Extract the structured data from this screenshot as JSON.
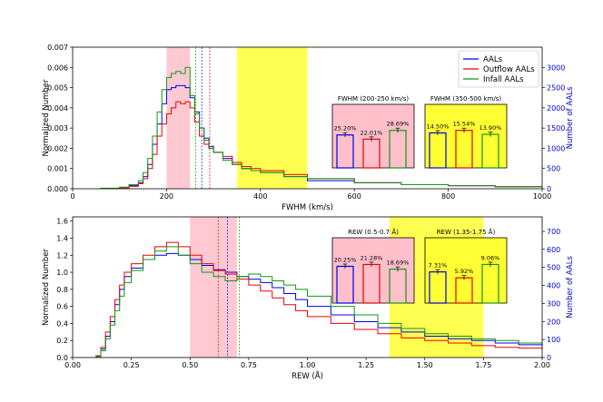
{
  "chart_data": [
    {
      "type": "step-histogram",
      "xlabel": "FWHM (km/s)",
      "ylabel": "Normalized Number",
      "ylabel_right": "Number of AALs",
      "xlim": [
        0,
        1000
      ],
      "ylim": [
        0,
        0.007
      ],
      "ylim_right": [
        0,
        3500
      ],
      "xticks": [
        "0",
        "200",
        "400",
        "600",
        "800",
        "1000"
      ],
      "yticks": [
        "0.000",
        "0.001",
        "0.002",
        "0.003",
        "0.004",
        "0.005",
        "0.006",
        "0.007"
      ],
      "yticks_right": [
        "0",
        "500",
        "1000",
        "1500",
        "2000",
        "2500",
        "3000"
      ],
      "xtick_values": [
        0,
        200,
        400,
        600,
        800,
        1000
      ],
      "ytick_values": [
        0,
        0.001,
        0.002,
        0.003,
        0.004,
        0.005,
        0.006,
        0.007
      ],
      "ytick_right_values": [
        0,
        500,
        1000,
        1500,
        2000,
        2500,
        3000
      ],
      "shaded_regions": [
        {
          "x0": 200,
          "x1": 250,
          "color": "#ffc0cb"
        },
        {
          "x0": 350,
          "x1": 500,
          "color": "#ffff33"
        }
      ],
      "vlines": [
        {
          "x": 262,
          "color": "#22aa22"
        },
        {
          "x": 275,
          "color": "#2222dd"
        },
        {
          "x": 292,
          "color": "#dd2222"
        }
      ],
      "series": [
        {
          "name": "AALs",
          "color": "#0000ee",
          "x": [
            60,
            100,
            120,
            140,
            150,
            160,
            170,
            180,
            190,
            200,
            210,
            220,
            230,
            240,
            250,
            260,
            270,
            280,
            290,
            300,
            320,
            340,
            360,
            380,
            400,
            450,
            500,
            600,
            700,
            800,
            900,
            1000
          ],
          "values": [
            2e-05,
            5e-05,
            0.00015,
            0.0003,
            0.0006,
            0.0012,
            0.0022,
            0.0032,
            0.0042,
            0.0049,
            0.005,
            0.0051,
            0.0051,
            0.005,
            0.0045,
            0.0038,
            0.003,
            0.0025,
            0.0021,
            0.0018,
            0.0015,
            0.0012,
            0.001,
            0.0009,
            0.0008,
            0.0006,
            0.0004,
            0.0003,
            0.0002,
            0.00015,
            0.0001,
            0.0001
          ]
        },
        {
          "name": "Outflow AALs",
          "color": "#ee0000",
          "x": [
            60,
            100,
            120,
            140,
            150,
            160,
            170,
            180,
            190,
            200,
            210,
            220,
            230,
            240,
            250,
            260,
            270,
            280,
            290,
            300,
            320,
            340,
            360,
            380,
            400,
            450,
            500,
            600,
            700,
            800,
            900,
            1000
          ],
          "values": [
            2e-05,
            4e-05,
            0.00012,
            0.00025,
            0.0005,
            0.001,
            0.0017,
            0.0026,
            0.0032,
            0.0037,
            0.004,
            0.0043,
            0.0042,
            0.0043,
            0.004,
            0.0033,
            0.0026,
            0.0022,
            0.002,
            0.0018,
            0.0016,
            0.0013,
            0.0011,
            0.001,
            0.0009,
            0.0007,
            0.0005,
            0.0003,
            0.0002,
            0.00015,
            0.0001,
            0.0001
          ]
        },
        {
          "name": "Infall AALs",
          "color": "#119911",
          "x": [
            60,
            100,
            120,
            140,
            150,
            160,
            170,
            180,
            190,
            200,
            210,
            220,
            230,
            240,
            250,
            260,
            270,
            280,
            290,
            300,
            320,
            340,
            360,
            380,
            400,
            450,
            500,
            600,
            700,
            800,
            900,
            1000
          ],
          "values": [
            3e-05,
            8e-05,
            0.0002,
            0.0004,
            0.0008,
            0.0015,
            0.0026,
            0.0038,
            0.0049,
            0.0055,
            0.0057,
            0.0058,
            0.0057,
            0.006,
            0.0046,
            0.0037,
            0.003,
            0.0024,
            0.002,
            0.0018,
            0.0014,
            0.0012,
            0.001,
            0.0009,
            0.0008,
            0.0006,
            0.0005,
            0.0003,
            0.0002,
            0.00015,
            0.0001,
            0.0001
          ]
        }
      ],
      "legend": {
        "entries": [
          "AALs",
          "Outflow AALs",
          "Infall AALs"
        ],
        "position": "top-right"
      },
      "insets": [
        {
          "title": "FWHM (200-250 km/s)",
          "background": "#ffc0cb",
          "labels": [
            "25.20%",
            "22.01%",
            "28.69%"
          ],
          "values": [
            25.2,
            22.01,
            28.69
          ]
        },
        {
          "title": "FWHM (350-500 km/s)",
          "background": "#ffff33",
          "labels": [
            "14.50%",
            "15.54%",
            "13.90%"
          ],
          "values": [
            14.5,
            15.54,
            13.9
          ]
        }
      ]
    },
    {
      "type": "step-histogram",
      "xlabel": "REW (Å)",
      "ylabel": "Normalized Number",
      "ylabel_right": "Number of AALs",
      "xlim": [
        0,
        2.0
      ],
      "ylim": [
        0,
        1.65
      ],
      "ylim_right": [
        0,
        780
      ],
      "xticks": [
        "0.00",
        "0.25",
        "0.50",
        "0.75",
        "1.00",
        "1.25",
        "1.50",
        "1.75",
        "2.00"
      ],
      "yticks": [
        "0.0",
        "0.2",
        "0.4",
        "0.6",
        "0.8",
        "1.0",
        "1.2",
        "1.4",
        "1.6"
      ],
      "yticks_right": [
        "0",
        "100",
        "200",
        "300",
        "400",
        "500",
        "600",
        "700"
      ],
      "xtick_values": [
        0,
        0.25,
        0.5,
        0.75,
        1.0,
        1.25,
        1.5,
        1.75,
        2.0
      ],
      "ytick_values": [
        0,
        0.2,
        0.4,
        0.6,
        0.8,
        1.0,
        1.2,
        1.4,
        1.6
      ],
      "ytick_right_values": [
        0,
        100,
        200,
        300,
        400,
        500,
        600,
        700
      ],
      "shaded_regions": [
        {
          "x0": 0.5,
          "x1": 0.7,
          "color": "#ffc0cb"
        },
        {
          "x0": 1.35,
          "x1": 1.75,
          "color": "#ffff33"
        }
      ],
      "vlines": [
        {
          "x": 0.62,
          "color": "#dd2222"
        },
        {
          "x": 0.66,
          "color": "#2222dd"
        },
        {
          "x": 0.71,
          "color": "#22aa22"
        }
      ],
      "series": [
        {
          "name": "AALs",
          "color": "#0000ee",
          "x": [
            0.1,
            0.12,
            0.14,
            0.16,
            0.18,
            0.2,
            0.22,
            0.25,
            0.3,
            0.35,
            0.4,
            0.45,
            0.5,
            0.55,
            0.6,
            0.65,
            0.7,
            0.75,
            0.8,
            0.85,
            0.9,
            0.95,
            1.0,
            1.1,
            1.2,
            1.3,
            1.4,
            1.5,
            1.6,
            1.7,
            1.8,
            1.9,
            2.0
          ],
          "values": [
            0.02,
            0.1,
            0.25,
            0.42,
            0.62,
            0.8,
            0.95,
            1.05,
            1.15,
            1.2,
            1.22,
            1.2,
            1.15,
            1.08,
            1.03,
            1.0,
            0.95,
            0.92,
            0.88,
            0.82,
            0.75,
            0.68,
            0.6,
            0.5,
            0.42,
            0.35,
            0.3,
            0.25,
            0.22,
            0.2,
            0.17,
            0.15,
            0.13
          ]
        },
        {
          "name": "Outflow AALs",
          "color": "#ee0000",
          "x": [
            0.1,
            0.12,
            0.14,
            0.16,
            0.18,
            0.2,
            0.22,
            0.25,
            0.3,
            0.35,
            0.4,
            0.45,
            0.5,
            0.55,
            0.6,
            0.65,
            0.7,
            0.75,
            0.8,
            0.85,
            0.9,
            0.95,
            1.0,
            1.1,
            1.2,
            1.3,
            1.4,
            1.5,
            1.6,
            1.7,
            1.8,
            1.9,
            2.0
          ],
          "values": [
            0.02,
            0.12,
            0.3,
            0.48,
            0.68,
            0.85,
            1.0,
            1.1,
            1.2,
            1.3,
            1.35,
            1.3,
            1.2,
            1.1,
            1.02,
            0.98,
            0.92,
            0.85,
            0.78,
            0.7,
            0.62,
            0.55,
            0.48,
            0.4,
            0.33,
            0.28,
            0.23,
            0.2,
            0.17,
            0.14,
            0.12,
            0.11,
            0.1
          ]
        },
        {
          "name": "Infall AALs",
          "color": "#119911",
          "x": [
            0.1,
            0.12,
            0.14,
            0.16,
            0.18,
            0.2,
            0.22,
            0.25,
            0.3,
            0.35,
            0.4,
            0.45,
            0.5,
            0.55,
            0.6,
            0.65,
            0.7,
            0.75,
            0.8,
            0.85,
            0.9,
            0.95,
            1.0,
            1.1,
            1.2,
            1.3,
            1.4,
            1.5,
            1.6,
            1.7,
            1.8,
            1.9,
            2.0
          ],
          "values": [
            0.01,
            0.08,
            0.22,
            0.38,
            0.55,
            0.72,
            0.88,
            1.02,
            1.15,
            1.25,
            1.3,
            1.2,
            1.1,
            1.0,
            0.95,
            0.9,
            0.95,
            0.98,
            0.95,
            0.9,
            0.85,
            0.8,
            0.72,
            0.6,
            0.5,
            0.4,
            0.34,
            0.28,
            0.25,
            0.22,
            0.2,
            0.17,
            0.15
          ]
        }
      ],
      "insets": [
        {
          "title": "REW (0.5-0.7 Å)",
          "background": "#ffc0cb",
          "labels": [
            "20.25%",
            "21.28%",
            "18.69%"
          ],
          "values": [
            20.25,
            21.28,
            18.69
          ]
        },
        {
          "title": "REW (1.35-1.75 Å)",
          "background": "#ffff33",
          "labels": [
            "7.31%",
            "5.92%",
            "9.06%"
          ],
          "values": [
            7.31,
            5.92,
            9.06
          ]
        }
      ]
    }
  ]
}
